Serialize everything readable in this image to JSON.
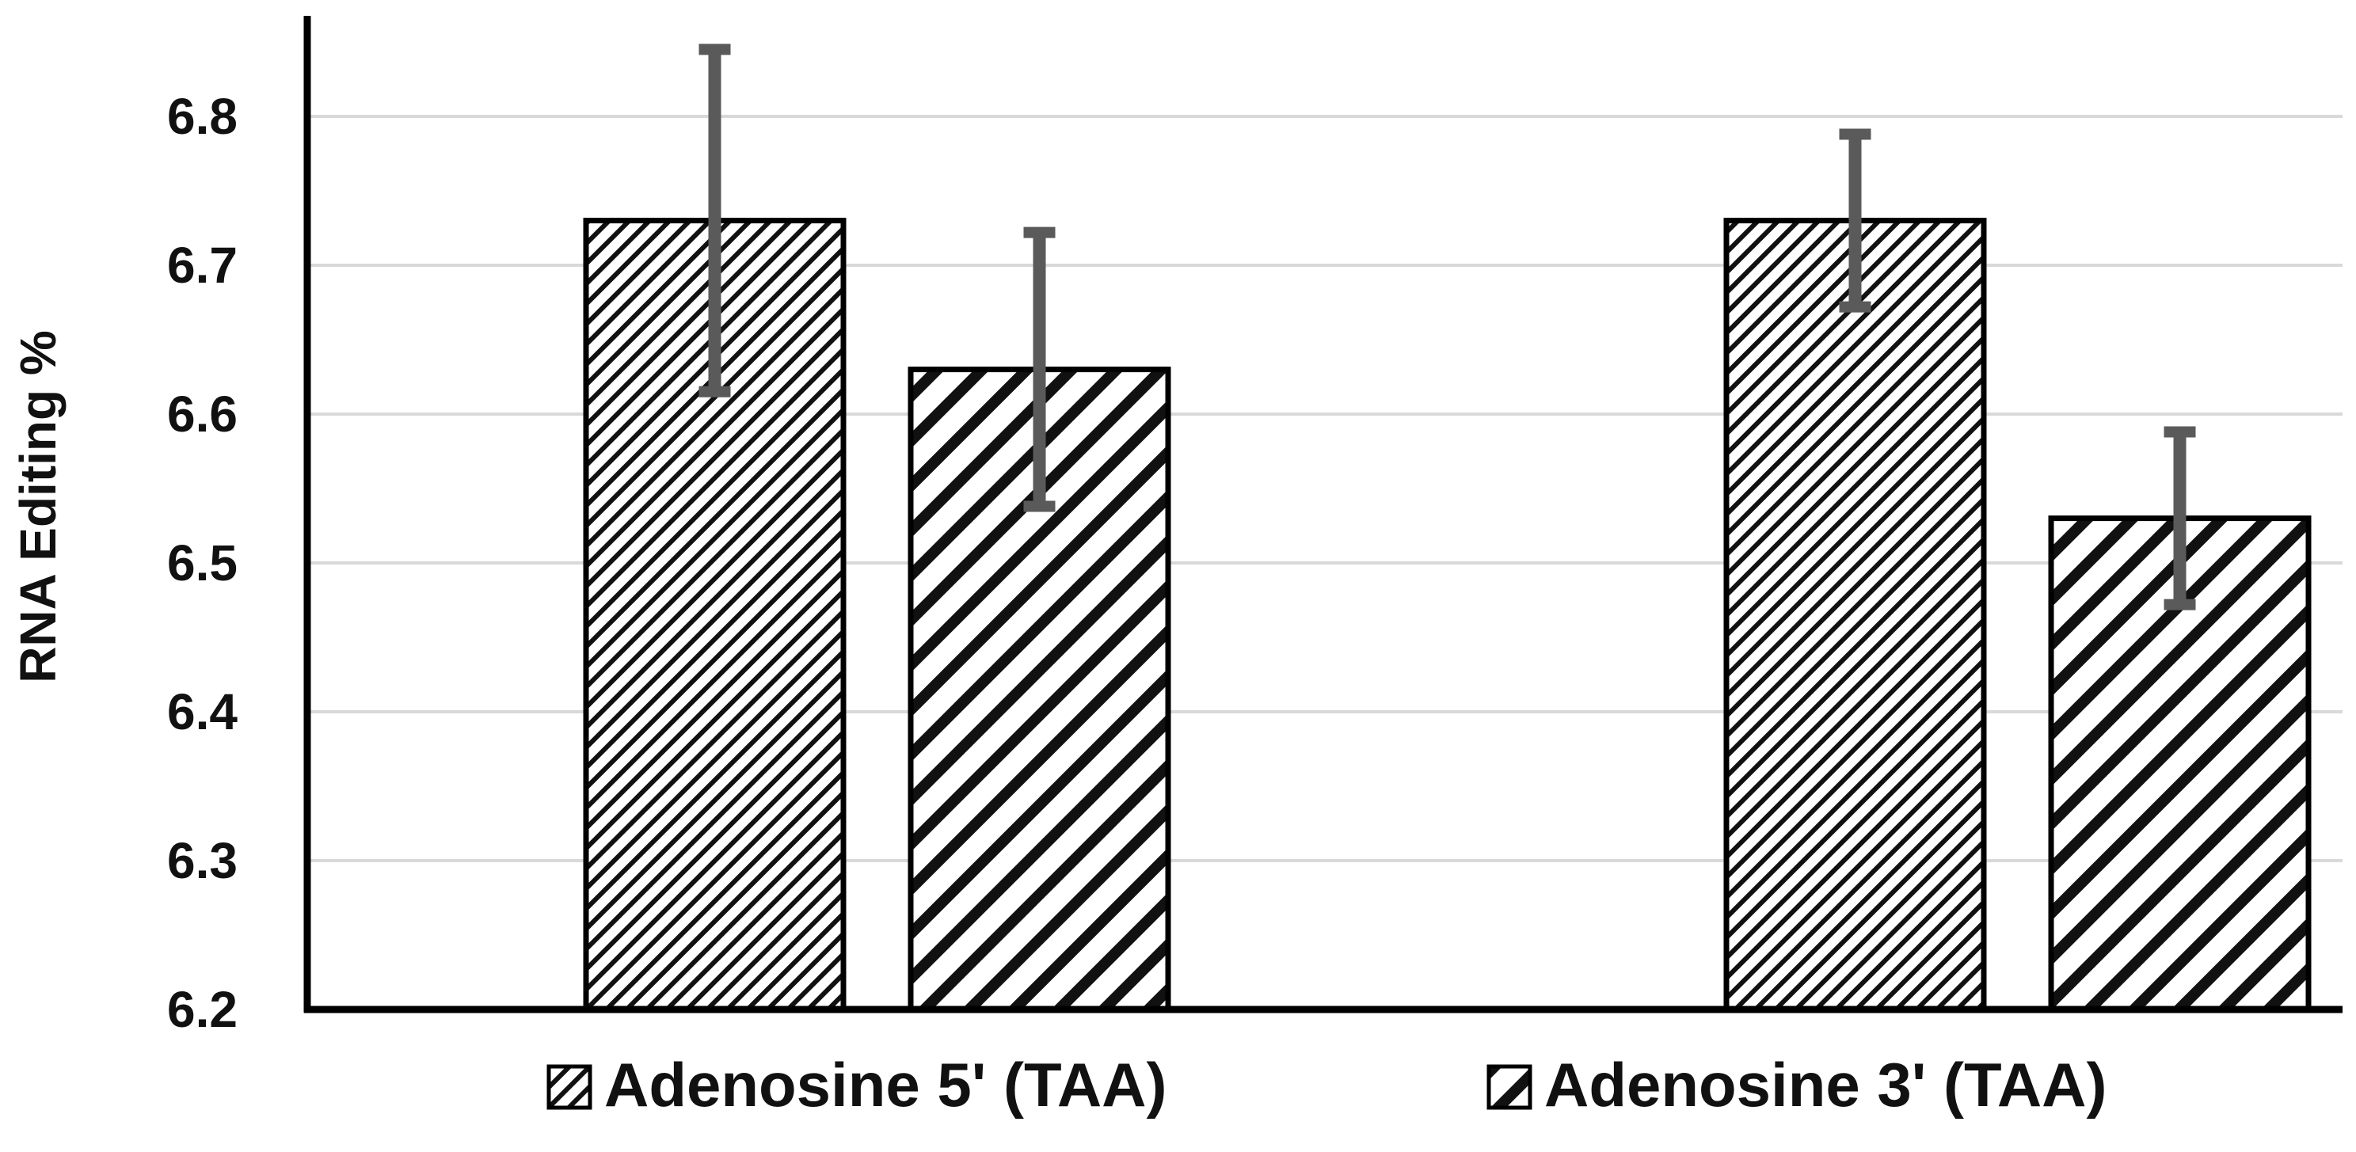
{
  "chart_data": {
    "type": "bar",
    "title": "",
    "xlabel": "",
    "ylabel": "RNA Editing %",
    "ylim": [
      6.2,
      6.85
    ],
    "yticks": [
      6.2,
      6.3,
      6.4,
      6.5,
      6.6,
      6.7,
      6.8
    ],
    "ytick_labels": [
      "6.2",
      "6.3",
      "6.4",
      "6.5",
      "6.6",
      "6.7",
      "6.8"
    ],
    "grid": true,
    "legend_position": "bottom",
    "categories": [
      "",
      ""
    ],
    "series": [
      {
        "name": "Adenosine 5' (TAA)",
        "pattern": "fine-diagonal-hatch",
        "values": [
          6.73,
          6.73
        ],
        "errors": [
          [
            6.615,
            6.845
          ],
          [
            6.672,
            6.788
          ]
        ]
      },
      {
        "name": "Adenosine 3' (TAA)",
        "pattern": "wide-diagonal-stripes",
        "values": [
          6.63,
          6.53
        ],
        "errors": [
          [
            6.538,
            6.722
          ],
          [
            6.472,
            6.588
          ]
        ]
      }
    ]
  },
  "colors": {
    "bar_outline": "#000000",
    "hatch": "#111111",
    "error_bar": "#5a5a5a",
    "grid": "#d9d9d9",
    "axis": "#000000"
  }
}
